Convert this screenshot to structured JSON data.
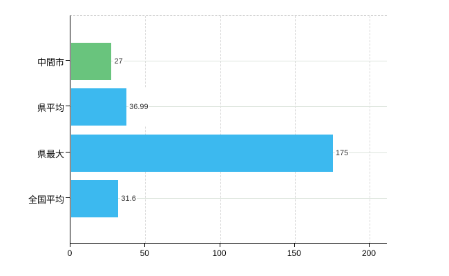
{
  "chart_data": {
    "type": "bar",
    "orientation": "horizontal",
    "title": "",
    "xlabel": "",
    "ylabel": "",
    "categories": [
      "中間市",
      "県平均",
      "県最大",
      "全国平均"
    ],
    "values": [
      27,
      36.99,
      175,
      31.6
    ],
    "value_labels": [
      "27",
      "36.99",
      "175",
      "31.6"
    ],
    "bar_colors": [
      "#69c47d",
      "#3cb9ef",
      "#3cb9ef",
      "#3cb9ef"
    ],
    "x_ticks": [
      0,
      50,
      100,
      150,
      200
    ],
    "x_tick_labels": [
      "0",
      "50",
      "100",
      "150",
      "200"
    ],
    "xlim": [
      0,
      212
    ],
    "legend": null,
    "grid": {
      "vertical": "dashed-at-ticks",
      "horizontal": "solid-at-category-centers",
      "top_border": "dashed"
    }
  },
  "colors": {
    "bar_blue": "#3cb9ef",
    "bar_green": "#69c47d",
    "axis": "#000000",
    "grid_vertical": "#d8d8d8",
    "grid_horizontal": "#dce4dc",
    "top_border": "#d3d3d3",
    "tick_text": "#000000",
    "value_text": "#333333",
    "background": "#ffffff"
  }
}
